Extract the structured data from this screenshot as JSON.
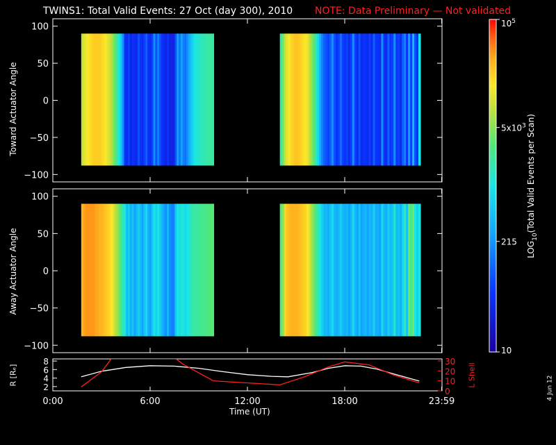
{
  "header": {
    "title": "TWINS1: Total Valid Events: 27 Oct (day 300), 2010",
    "note": "NOTE: Data Preliminary — Not validated"
  },
  "colors": {
    "note": "#ff2020",
    "lshell": "#ff2020",
    "radius": "#ffffff",
    "frame": "#ffffff"
  },
  "chart_data": [
    {
      "type": "heatmap",
      "ylabel": "Toward Actuator Angle",
      "ylim": [
        -110,
        110
      ],
      "yticks": [
        "100",
        "50",
        "0",
        "−50",
        "−100"
      ],
      "ytick_values": [
        100,
        50,
        0,
        -50,
        -100
      ],
      "xlim_hours": [
        0,
        24
      ],
      "data_extent_angle": [
        -88,
        90
      ],
      "segments": [
        {
          "start": "1:45",
          "end": "9:55",
          "start_h": 1.75,
          "end_h": 9.92
        },
        {
          "start": "14:00",
          "end": "22:40",
          "start_h": 14.0,
          "end_h": 22.67
        }
      ],
      "columns_log10": [
        3.95,
        4.05,
        4.15,
        4.2,
        4.25,
        4.3,
        4.35,
        4.35,
        4.35,
        4.35,
        4.3,
        4.25,
        4.2,
        4.1,
        4.0,
        3.9,
        3.7,
        3.5,
        3.3,
        3.0,
        2.7,
        2.3,
        1.7,
        1.6,
        1.8,
        1.5,
        1.7,
        1.6,
        1.6,
        1.9,
        1.7,
        1.6,
        1.8,
        2.0,
        1.7,
        1.6,
        1.8,
        2.3,
        1.9,
        2.2,
        1.9,
        1.7,
        1.6,
        1.5,
        1.7,
        1.5,
        1.5,
        1.5,
        1.9,
        2.4,
        2.1,
        2.4,
        2.2,
        2.1,
        2.3,
        2.5,
        2.7,
        2.9,
        3.0,
        3.1,
        3.1,
        3.2,
        3.2,
        3.2,
        3.3,
        3.3,
        3.3,
        3.3,
        3.3,
        3.6,
        3.95,
        4.1,
        4.2,
        4.3,
        4.35,
        4.4,
        4.4,
        4.35,
        4.3,
        4.25,
        4.2,
        4.1,
        3.9,
        3.7,
        3.5,
        3.2,
        2.9,
        2.5,
        2.2,
        2.0,
        1.9,
        1.8,
        2.0,
        2.3,
        1.9,
        1.7,
        1.8,
        2.1,
        1.8,
        1.7,
        1.8,
        1.6,
        1.8,
        2.3,
        1.8,
        1.6,
        1.9,
        1.6,
        1.7,
        1.7,
        1.6,
        1.8,
        1.6,
        2.0,
        1.7,
        1.7,
        1.6,
        2.3,
        1.7,
        1.6,
        2.0,
        1.7,
        1.8,
        2.3,
        1.7,
        1.8,
        1.6,
        2.0,
        2.2,
        1.7,
        2.4,
        1.8,
        2.6,
        1.9,
        1.7,
        3.0
      ]
    },
    {
      "type": "heatmap",
      "ylabel": "Away Actuator Angle",
      "ylim": [
        -110,
        110
      ],
      "yticks": [
        "100",
        "50",
        "0",
        "−50",
        "−100"
      ],
      "ytick_values": [
        100,
        50,
        0,
        -50,
        -100
      ],
      "xlim_hours": [
        0,
        24
      ],
      "data_extent_angle": [
        -88,
        90
      ],
      "segments": [
        {
          "start": "1:45",
          "end": "9:55",
          "start_h": 1.75,
          "end_h": 9.92
        },
        {
          "start": "14:00",
          "end": "22:40",
          "start_h": 14.0,
          "end_h": 22.67
        }
      ],
      "columns_log10": [
        4.5,
        4.55,
        4.6,
        4.6,
        4.6,
        4.6,
        4.6,
        4.55,
        4.55,
        4.5,
        4.5,
        4.45,
        4.4,
        4.35,
        4.3,
        4.2,
        4.1,
        3.9,
        3.8,
        3.6,
        3.4,
        3.2,
        3.0,
        2.6,
        2.8,
        2.5,
        2.7,
        2.4,
        2.6,
        2.8,
        2.6,
        2.4,
        2.7,
        2.9,
        2.5,
        2.4,
        2.7,
        3.0,
        2.8,
        3.0,
        2.8,
        2.6,
        2.4,
        2.3,
        2.6,
        2.3,
        2.2,
        2.2,
        2.7,
        3.0,
        2.9,
        3.1,
        3.0,
        2.9,
        3.0,
        3.1,
        3.2,
        3.3,
        3.3,
        3.3,
        3.35,
        3.4,
        3.4,
        3.4,
        3.45,
        3.45,
        3.5,
        3.5,
        3.5,
        3.7,
        4.3,
        4.4,
        4.45,
        4.5,
        4.5,
        4.5,
        4.5,
        4.45,
        4.4,
        4.35,
        4.3,
        4.2,
        4.0,
        3.8,
        3.6,
        3.4,
        3.2,
        3.0,
        2.8,
        2.6,
        2.6,
        2.5,
        2.7,
        2.9,
        2.6,
        2.5,
        2.6,
        2.8,
        2.6,
        2.5,
        2.6,
        2.4,
        2.6,
        2.9,
        2.6,
        2.4,
        2.7,
        2.4,
        2.5,
        2.6,
        2.4,
        2.6,
        2.5,
        2.8,
        2.5,
        2.5,
        2.4,
        2.9,
        2.6,
        2.5,
        2.8,
        2.6,
        2.7,
        3.1,
        2.6,
        2.7,
        2.5,
        2.9,
        3.2,
        2.7,
        3.6,
        3.4,
        3.6,
        3.0,
        2.8,
        3.0
      ]
    },
    {
      "type": "line",
      "ylabel": "R [Rₑ]",
      "y2label": "L Shell",
      "ylim": [
        1,
        8.5
      ],
      "yticks": [
        "8",
        "6",
        "4",
        "2"
      ],
      "ytick_values": [
        8,
        6,
        4,
        2
      ],
      "y2lim": [
        0,
        32
      ],
      "y2ticks": [
        "30",
        "20",
        "10",
        "0"
      ],
      "y2tick_values": [
        30,
        20,
        10,
        0
      ],
      "xlabel": "Time (UT)",
      "xlim": [
        0,
        24
      ],
      "xticks": [
        "0:00",
        "6:00",
        "12:00",
        "18:00",
        "23:59"
      ],
      "xtick_values": [
        0,
        6,
        12,
        18,
        23.98
      ],
      "series": [
        {
          "role": "radius",
          "x": [
            1.75,
            3,
            4.5,
            6,
            7.5,
            9,
            10.5,
            12,
            13.5,
            14.5,
            16,
            17,
            18,
            19,
            20,
            21,
            22.6
          ],
          "y": [
            4.3,
            5.6,
            6.5,
            6.9,
            6.8,
            6.3,
            5.5,
            4.8,
            4.4,
            4.3,
            5.3,
            6.3,
            6.9,
            6.8,
            6.1,
            5.0,
            3.3
          ]
        },
        {
          "role": "lshell",
          "x": [
            1.75,
            3,
            3.6,
            7.6,
            8,
            9.9,
            14,
            15.5,
            17,
            18,
            19.5,
            21,
            22.6
          ],
          "y": [
            4,
            19,
            32,
            32,
            27,
            10,
            6,
            14,
            24,
            29,
            26,
            16,
            8
          ]
        }
      ]
    }
  ],
  "colorbar": {
    "label_pre": "LOG",
    "label_sub": "10",
    "label_post": "(Total Valid Events per Scan)",
    "range_log10": [
      1,
      5
    ],
    "ticks": [
      {
        "base": "10",
        "exp": "5",
        "value": 5
      },
      {
        "base": "5x10",
        "exp": "3",
        "value": 3.7
      },
      {
        "base": "215",
        "exp": "",
        "value": 2.33
      },
      {
        "base": "10",
        "exp": "",
        "value": 1
      }
    ]
  },
  "footer": {
    "date": "4 Jun 12"
  }
}
